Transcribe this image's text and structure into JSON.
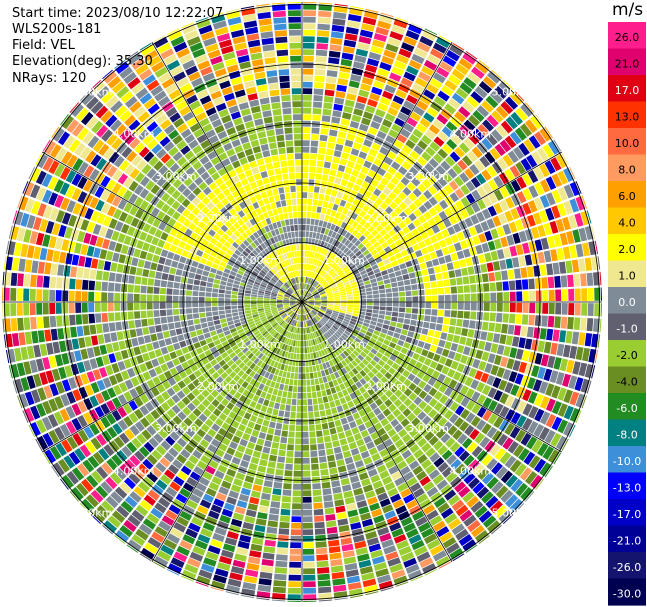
{
  "header": {
    "start_time": "Start time: 2023/08/10 12:22:07",
    "instrument": "WLS200s-181",
    "field": "Field: VEL",
    "elevation": "Elevation(deg): 35.30",
    "nrays": "NRays: 120"
  },
  "chart_data": {
    "type": "heatmap",
    "projection": "polar",
    "title": "",
    "xlabel": "",
    "ylabel": "",
    "units": "m/s",
    "colorbar": {
      "unit_label": "m/s",
      "ticks": [
        "26.0",
        "21.0",
        "17.0",
        "13.0",
        "10.0",
        "8.0",
        "6.0",
        "4.0",
        "2.0",
        "1.0",
        "0.0",
        "-1.0",
        "-2.0",
        "-4.0",
        "-6.0",
        "-8.0",
        "-10.0",
        "-13.0",
        "-17.0",
        "-21.0",
        "-26.0",
        "-30.0"
      ],
      "colors": [
        "#ff1e8c",
        "#e0006e",
        "#e00014",
        "#ff3200",
        "#ff6a40",
        "#ff9a60",
        "#ffa000",
        "#ffc800",
        "#ffff00",
        "#f0e890",
        "#7f8b96",
        "#606070",
        "#9acd32",
        "#6b8e23",
        "#228b22",
        "#008080",
        "#3c8fd8",
        "#0000ff",
        "#0000c8",
        "#000096",
        "#14146e",
        "#000050"
      ]
    },
    "range_rings_km": [
      "1.00km",
      "2.00km",
      "3.00km",
      "4.00km",
      "5.00km"
    ],
    "nrays": 120,
    "velocity_pattern": [
      {
        "range_km": [
          0.0,
          0.45
        ],
        "value": "near-zero mix"
      },
      {
        "range_km": [
          0.45,
          1.0
        ],
        "value": "yellow ring (1 to 4 m/s) to the north-east, green (-1 to -2 m/s) to the south-west"
      },
      {
        "range_km": [
          1.0,
          2.5
        ],
        "value": "yellow (2 to 4 m/s) in the north, green (-1 to -2 m/s) in the south, grey (0 m/s) elsewhere"
      },
      {
        "range_km": [
          2.5,
          3.2
        ],
        "value": "mostly green and grey"
      },
      {
        "range_km": [
          3.2,
          5.5
        ],
        "value": "noisy, all colour classes"
      }
    ]
  }
}
